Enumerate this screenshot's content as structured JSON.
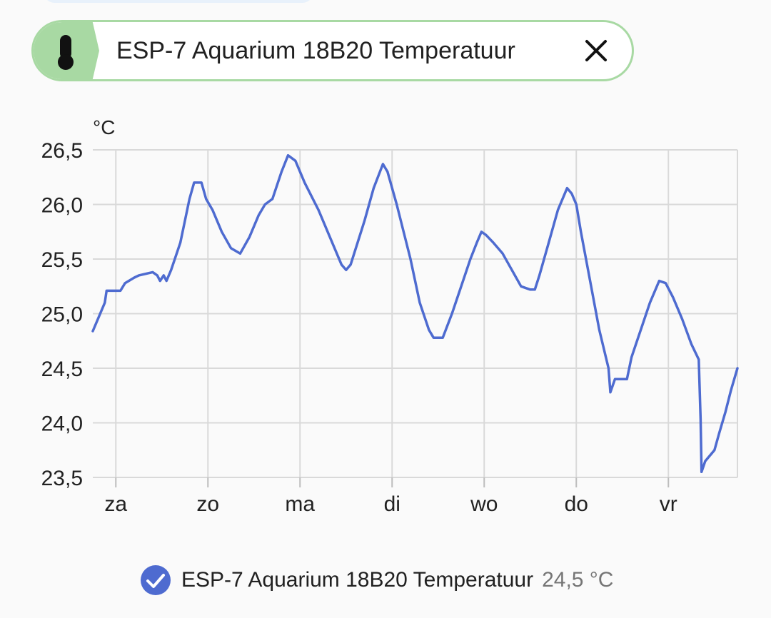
{
  "entity_chip": {
    "label": "ESP-7 Aquarium 18B20 Temperatuur",
    "icon": "thermometer-icon",
    "close_icon": "close-icon",
    "accent_color": "#a8d9a3"
  },
  "legend": {
    "name": "ESP-7 Aquarium 18B20 Temperatuur",
    "value": "24,5 °C",
    "color": "#4e6bd0"
  },
  "chart_data": {
    "type": "line",
    "ylabel": "°C",
    "ylim": [
      23.5,
      26.5
    ],
    "yticks": [
      {
        "value": 26.5,
        "label": "26,5"
      },
      {
        "value": 26.0,
        "label": "26,0"
      },
      {
        "value": 25.5,
        "label": "25,5"
      },
      {
        "value": 25.0,
        "label": "25,0"
      },
      {
        "value": 24.5,
        "label": "24,5"
      },
      {
        "value": 24.0,
        "label": "24,0"
      },
      {
        "value": 23.5,
        "label": "23,5"
      }
    ],
    "xlim": [
      -0.25,
      6.75
    ],
    "xticks": [
      {
        "value": 0,
        "label": "za"
      },
      {
        "value": 1,
        "label": "zo"
      },
      {
        "value": 2,
        "label": "ma"
      },
      {
        "value": 3,
        "label": "di"
      },
      {
        "value": 4,
        "label": "wo"
      },
      {
        "value": 5,
        "label": "do"
      },
      {
        "value": 6,
        "label": "vr"
      }
    ],
    "grid": true,
    "series": [
      {
        "name": "ESP-7 Aquarium 18B20 Temperatuur",
        "color": "#4e6bd0",
        "points": [
          [
            -0.25,
            24.84
          ],
          [
            -0.12,
            25.1
          ],
          [
            -0.1,
            25.21
          ],
          [
            0.05,
            25.21
          ],
          [
            0.1,
            25.28
          ],
          [
            0.2,
            25.33
          ],
          [
            0.25,
            25.35
          ],
          [
            0.4,
            25.38
          ],
          [
            0.45,
            25.35
          ],
          [
            0.48,
            25.3
          ],
          [
            0.52,
            25.35
          ],
          [
            0.55,
            25.3
          ],
          [
            0.6,
            25.4
          ],
          [
            0.7,
            25.65
          ],
          [
            0.8,
            26.05
          ],
          [
            0.85,
            26.2
          ],
          [
            0.93,
            26.2
          ],
          [
            0.98,
            26.05
          ],
          [
            1.05,
            25.95
          ],
          [
            1.15,
            25.75
          ],
          [
            1.25,
            25.6
          ],
          [
            1.35,
            25.55
          ],
          [
            1.45,
            25.7
          ],
          [
            1.55,
            25.9
          ],
          [
            1.62,
            26.0
          ],
          [
            1.7,
            26.05
          ],
          [
            1.8,
            26.3
          ],
          [
            1.87,
            26.45
          ],
          [
            1.95,
            26.4
          ],
          [
            2.05,
            26.2
          ],
          [
            2.2,
            25.95
          ],
          [
            2.35,
            25.65
          ],
          [
            2.45,
            25.45
          ],
          [
            2.5,
            25.4
          ],
          [
            2.55,
            25.45
          ],
          [
            2.7,
            25.85
          ],
          [
            2.8,
            26.15
          ],
          [
            2.9,
            26.37
          ],
          [
            2.95,
            26.3
          ],
          [
            3.05,
            26.0
          ],
          [
            3.2,
            25.5
          ],
          [
            3.3,
            25.1
          ],
          [
            3.4,
            24.85
          ],
          [
            3.45,
            24.78
          ],
          [
            3.55,
            24.78
          ],
          [
            3.65,
            25.0
          ],
          [
            3.75,
            25.25
          ],
          [
            3.85,
            25.5
          ],
          [
            3.92,
            25.65
          ],
          [
            3.97,
            25.75
          ],
          [
            4.02,
            25.72
          ],
          [
            4.1,
            25.65
          ],
          [
            4.2,
            25.55
          ],
          [
            4.3,
            25.4
          ],
          [
            4.4,
            25.25
          ],
          [
            4.5,
            25.22
          ],
          [
            4.55,
            25.22
          ],
          [
            4.6,
            25.35
          ],
          [
            4.7,
            25.65
          ],
          [
            4.8,
            25.95
          ],
          [
            4.9,
            26.15
          ],
          [
            4.95,
            26.1
          ],
          [
            5.0,
            26.0
          ],
          [
            5.05,
            25.75
          ],
          [
            5.15,
            25.3
          ],
          [
            5.25,
            24.85
          ],
          [
            5.35,
            24.5
          ],
          [
            5.37,
            24.28
          ],
          [
            5.42,
            24.4
          ],
          [
            5.55,
            24.4
          ],
          [
            5.6,
            24.6
          ],
          [
            5.7,
            24.85
          ],
          [
            5.8,
            25.1
          ],
          [
            5.9,
            25.3
          ],
          [
            5.97,
            25.28
          ],
          [
            6.05,
            25.15
          ],
          [
            6.15,
            24.95
          ],
          [
            6.25,
            24.72
          ],
          [
            6.33,
            24.58
          ],
          [
            6.35,
            24.03
          ],
          [
            6.36,
            23.55
          ],
          [
            6.4,
            23.65
          ],
          [
            6.5,
            23.75
          ],
          [
            6.55,
            23.9
          ],
          [
            6.62,
            24.1
          ],
          [
            6.68,
            24.3
          ],
          [
            6.75,
            24.5
          ]
        ]
      }
    ]
  }
}
